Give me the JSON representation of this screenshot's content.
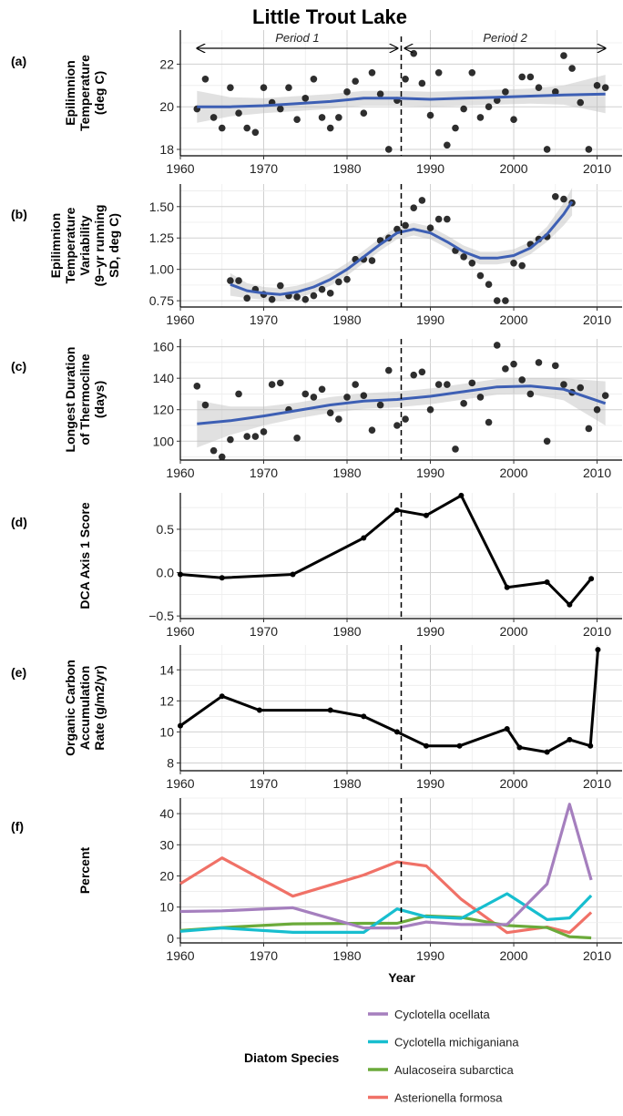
{
  "chart_data": {
    "title": "Little Trout Lake",
    "xlabel": "Year",
    "xlim": [
      1960,
      2013
    ],
    "x_ticks": [
      1960,
      1970,
      1980,
      1990,
      2000,
      2010
    ],
    "break_year": 1986.5,
    "periods": [
      {
        "label": "Period 1",
        "from": 1962,
        "to": 1986.5
      },
      {
        "label": "Period 2",
        "from": 1986.5,
        "to": 2011
      }
    ],
    "panels": [
      {
        "id": "a",
        "tag": "(a)",
        "type": "scatter",
        "ylabel": [
          "Epilimnion",
          "Temperature",
          "(deg C)"
        ],
        "ylim": [
          17.7,
          23.6
        ],
        "y_ticks": [
          18,
          20,
          22
        ],
        "x": [
          1962,
          1963,
          1964,
          1965,
          1966,
          1967,
          1968,
          1969,
          1970,
          1971,
          1972,
          1973,
          1974,
          1975,
          1976,
          1977,
          1978,
          1979,
          1980,
          1981,
          1982,
          1983,
          1984,
          1985,
          1986,
          1987,
          1988,
          1989,
          1990,
          1991,
          1992,
          1993,
          1994,
          1995,
          1996,
          1997,
          1998,
          1999,
          2000,
          2001,
          2002,
          2003,
          2004,
          2005,
          2006,
          2007,
          2008,
          2009,
          2010,
          2011
        ],
        "y": [
          19.9,
          21.3,
          19.5,
          19.0,
          20.9,
          19.7,
          19.0,
          18.8,
          20.9,
          20.2,
          19.9,
          20.9,
          19.4,
          20.4,
          21.3,
          19.5,
          19.0,
          19.5,
          20.7,
          21.2,
          19.7,
          21.6,
          20.6,
          18.0,
          20.3,
          21.3,
          22.5,
          21.1,
          19.6,
          21.6,
          18.2,
          19.0,
          19.9,
          21.6,
          19.5,
          20.0,
          20.3,
          20.7,
          19.4,
          21.4,
          21.4,
          20.9,
          18.0,
          20.7,
          22.4,
          21.8,
          20.2,
          18.0,
          21.0,
          20.9
        ],
        "trend_x": [
          1962,
          1966,
          1970,
          1974,
          1978,
          1982,
          1986,
          1990,
          1994,
          1998,
          2002,
          2006,
          2011
        ],
        "trend_y": [
          20.0,
          20.0,
          20.05,
          20.15,
          20.25,
          20.4,
          20.4,
          20.35,
          20.4,
          20.45,
          20.5,
          20.55,
          20.6
        ],
        "ci_width": [
          0.75,
          0.45,
          0.35,
          0.35,
          0.35,
          0.35,
          0.35,
          0.35,
          0.35,
          0.35,
          0.35,
          0.45,
          0.9
        ]
      },
      {
        "id": "b",
        "tag": "(b)",
        "type": "scatter",
        "ylabel": [
          "Epilimnion",
          "Temperature",
          "Variability",
          "(9−yr running",
          "SD, deg C)"
        ],
        "ylim": [
          0.7,
          1.68
        ],
        "y_ticks": [
          0.75,
          1.0,
          1.25,
          1.5
        ],
        "y_tick_labels": [
          "0.75",
          "1.00",
          "1.25",
          "1.50"
        ],
        "x": [
          1966,
          1967,
          1968,
          1969,
          1970,
          1971,
          1972,
          1973,
          1974,
          1975,
          1976,
          1977,
          1978,
          1979,
          1980,
          1981,
          1982,
          1983,
          1984,
          1985,
          1986,
          1987,
          1988,
          1989,
          1990,
          1991,
          1992,
          1993,
          1994,
          1995,
          1996,
          1997,
          1998,
          1999,
          2000,
          2001,
          2002,
          2003,
          2004,
          2005,
          2006,
          2007
        ],
        "y": [
          0.91,
          0.91,
          0.77,
          0.84,
          0.8,
          0.76,
          0.87,
          0.79,
          0.78,
          0.76,
          0.79,
          0.84,
          0.81,
          0.9,
          0.92,
          1.08,
          1.08,
          1.07,
          1.23,
          1.25,
          1.32,
          1.35,
          1.49,
          1.55,
          1.33,
          1.4,
          1.4,
          1.15,
          1.1,
          1.05,
          0.95,
          0.88,
          0.75,
          0.75,
          1.05,
          1.03,
          1.2,
          1.24,
          1.26,
          1.58,
          1.56,
          1.53
        ],
        "trend_x": [
          1966,
          1968,
          1970,
          1972,
          1974,
          1976,
          1978,
          1980,
          1982,
          1984,
          1986,
          1988,
          1990,
          1992,
          1994,
          1996,
          1998,
          2000,
          2002,
          2004,
          2006,
          2007
        ],
        "trend_y": [
          0.88,
          0.83,
          0.81,
          0.8,
          0.82,
          0.86,
          0.92,
          1.0,
          1.1,
          1.2,
          1.29,
          1.32,
          1.29,
          1.22,
          1.14,
          1.09,
          1.09,
          1.11,
          1.17,
          1.28,
          1.44,
          1.54
        ],
        "ci_width": [
          0.09,
          0.06,
          0.05,
          0.05,
          0.05,
          0.05,
          0.05,
          0.05,
          0.05,
          0.05,
          0.05,
          0.05,
          0.05,
          0.05,
          0.05,
          0.05,
          0.05,
          0.05,
          0.05,
          0.06,
          0.09,
          0.11
        ]
      },
      {
        "id": "c",
        "tag": "(c)",
        "type": "scatter",
        "ylabel": [
          "Longest Duration",
          "of Thermocline",
          "(days)"
        ],
        "ylim": [
          88,
          165
        ],
        "y_ticks": [
          100,
          120,
          140,
          160
        ],
        "x": [
          1962,
          1963,
          1964,
          1965,
          1966,
          1967,
          1968,
          1969,
          1970,
          1971,
          1972,
          1973,
          1974,
          1975,
          1976,
          1977,
          1978,
          1979,
          1980,
          1981,
          1982,
          1983,
          1984,
          1985,
          1986,
          1987,
          1988,
          1989,
          1990,
          1991,
          1992,
          1993,
          1994,
          1995,
          1996,
          1997,
          1998,
          1999,
          2000,
          2001,
          2002,
          2003,
          2004,
          2005,
          2006,
          2007,
          2008,
          2009,
          2010,
          2011
        ],
        "y": [
          135,
          123,
          94,
          90,
          101,
          130,
          103,
          103,
          106,
          136,
          137,
          120,
          102,
          130,
          128,
          133,
          118,
          114,
          128,
          136,
          129,
          107,
          123,
          145,
          110,
          114,
          142,
          144,
          120,
          136,
          136,
          95,
          124,
          137,
          128,
          112,
          161,
          146,
          149,
          139,
          130,
          150,
          100,
          148,
          136,
          131,
          134,
          108,
          120,
          129
        ],
        "trend_x": [
          1962,
          1966,
          1970,
          1974,
          1978,
          1982,
          1986,
          1990,
          1994,
          1998,
          2002,
          2006,
          2011
        ],
        "trend_y": [
          111,
          113,
          116,
          119.5,
          123,
          125.5,
          126.5,
          128.5,
          131.5,
          134.5,
          135,
          133,
          124
        ],
        "ci_width": [
          15,
          9,
          6,
          5,
          5,
          5,
          5,
          5,
          5,
          5,
          5,
          7,
          14
        ]
      },
      {
        "id": "d",
        "tag": "(d)",
        "type": "line",
        "ylabel": [
          "DCA Axis 1 Score"
        ],
        "ylim": [
          -0.53,
          0.92
        ],
        "y_ticks": [
          -0.5,
          0.0,
          0.5
        ],
        "y_tick_labels": [
          "−0.5",
          "0.0",
          "0.5"
        ],
        "x": [
          1960,
          1965,
          1973.5,
          1982,
          1986,
          1989.5,
          1993.7,
          1999.2,
          2004,
          2006.7,
          2009.3
        ],
        "y": [
          -0.02,
          -0.06,
          -0.02,
          0.4,
          0.72,
          0.66,
          0.89,
          -0.17,
          -0.11,
          -0.37,
          -0.07
        ]
      },
      {
        "id": "e",
        "tag": "(e)",
        "type": "line",
        "ylabel": [
          "Organic Carbon",
          "Accumulation",
          "Rate (g/m2/yr)"
        ],
        "ylim": [
          7.5,
          15.6
        ],
        "y_ticks": [
          8,
          10,
          12,
          14
        ],
        "x": [
          1960,
          1965,
          1969.5,
          1978,
          1982,
          1986,
          1989.5,
          1993.5,
          1999.2,
          2000.7,
          2004,
          2006.7,
          2009.2,
          2010.1
        ],
        "y": [
          10.4,
          12.3,
          11.4,
          11.4,
          11.0,
          10.0,
          9.1,
          9.1,
          10.2,
          9.0,
          8.7,
          9.5,
          9.1,
          15.3
        ]
      },
      {
        "id": "f",
        "tag": "(f)",
        "type": "line",
        "ylabel": [
          "Percent"
        ],
        "ylim": [
          -1.5,
          45
        ],
        "y_ticks": [
          0,
          10,
          20,
          30,
          40
        ],
        "series": [
          {
            "name": "Asterionella formosa",
            "color": "#F07167",
            "x": [
              1960,
              1965,
              1973.5,
              1982,
              1986,
              1989.5,
              1993.7,
              1999.2,
              2004,
              2006.7,
              2009.3
            ],
            "y": [
              17.5,
              25.8,
              13.5,
              20.3,
              24.5,
              23.2,
              12.5,
              1.8,
              3.6,
              1.8,
              8.3
            ]
          },
          {
            "name": "Aulacoseira subarctica",
            "color": "#6BAA3A",
            "x": [
              1960,
              1965,
              1973.5,
              1982,
              1986,
              1989.5,
              1993.7,
              1999.2,
              2004,
              2006.7,
              2009.3
            ],
            "y": [
              2.5,
              3.4,
              4.6,
              4.8,
              4.8,
              7.2,
              6.7,
              4.1,
              3.4,
              0.5,
              0.1
            ]
          },
          {
            "name": "Cyclotella michiganiana",
            "color": "#17BECF",
            "x": [
              1960,
              1965,
              1973.5,
              1982,
              1986,
              1989.5,
              1993.7,
              1999.2,
              2004,
              2006.7,
              2009.3
            ],
            "y": [
              2.2,
              3.3,
              1.9,
              1.9,
              9.4,
              6.9,
              6.4,
              14.3,
              6.0,
              6.5,
              13.7
            ]
          },
          {
            "name": "Cyclotella ocellata",
            "color": "#A57FBE",
            "x": [
              1960,
              1965,
              1973.5,
              1982,
              1986,
              1989.5,
              1993.7,
              1999.2,
              2004,
              2006.7,
              2009.3
            ],
            "y": [
              8.6,
              8.8,
              9.8,
              3.3,
              3.3,
              5.2,
              4.4,
              4.4,
              17.4,
              43.0,
              18.7
            ]
          }
        ]
      }
    ],
    "legend": {
      "title": "Diatom Species",
      "entries": [
        {
          "name": "Cyclotella ocellata",
          "color": "#A57FBE"
        },
        {
          "name": "Cyclotella michiganiana",
          "color": "#17BECF"
        },
        {
          "name": "Aulacoseira subarctica",
          "color": "#6BAA3A"
        },
        {
          "name": "Asterionella formosa",
          "color": "#F07167"
        }
      ]
    }
  }
}
